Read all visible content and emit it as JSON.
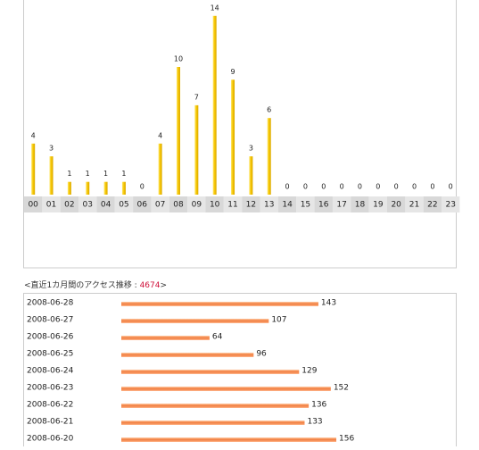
{
  "chart_data": [
    {
      "type": "bar",
      "color": "#f5c400",
      "categories": [
        "00",
        "01",
        "02",
        "03",
        "04",
        "05",
        "06",
        "07",
        "08",
        "09",
        "10",
        "11",
        "12",
        "13",
        "14",
        "15",
        "16",
        "17",
        "18",
        "19",
        "20",
        "21",
        "22",
        "23"
      ],
      "values": [
        4,
        3,
        1,
        1,
        1,
        1,
        0,
        4,
        10,
        7,
        14,
        9,
        3,
        6,
        0,
        0,
        0,
        0,
        0,
        0,
        0,
        0,
        0,
        0
      ]
    },
    {
      "type": "hbar",
      "color": "#f07a3a",
      "title": "<直近1カ月間のアクセス推移 : ",
      "total": 4674,
      "title_end": ">",
      "categories": [
        "2008-06-28",
        "2008-06-27",
        "2008-06-26",
        "2008-06-25",
        "2008-06-24",
        "2008-06-23",
        "2008-06-22",
        "2008-06-21",
        "2008-06-20"
      ],
      "values": [
        143,
        107,
        64,
        96,
        129,
        152,
        136,
        133,
        156
      ]
    }
  ]
}
